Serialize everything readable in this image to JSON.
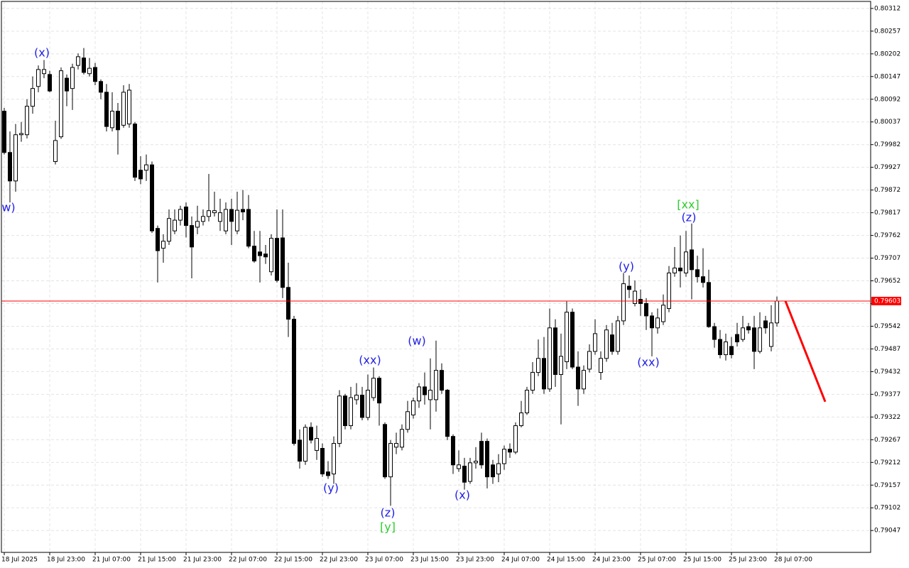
{
  "chart_data": {
    "type": "candlestick",
    "up_color": "#ffffff",
    "down_color": "#000000",
    "wick_color": "#000000",
    "grid": true,
    "open": [
      0.80063,
      0.79963,
      0.79894,
      0.80006,
      0.80006,
      0.80075,
      0.80123,
      0.80154,
      0.80152,
      0.79941,
      0.80001,
      0.80143,
      0.80118,
      0.80174,
      0.80192,
      0.80154,
      0.80169,
      0.80135,
      0.80109,
      0.80023,
      0.80063,
      0.80029,
      0.80032,
      0.80032,
      0.7992,
      0.7992,
      0.79933,
      0.79779,
      0.79731,
      0.79748,
      0.79773,
      0.79799,
      0.79831,
      0.79786,
      0.79782,
      0.79796,
      0.79808,
      0.79817,
      0.79796,
      0.79773,
      0.79825,
      0.79773,
      0.79825,
      0.79825,
      0.79736,
      0.79722,
      0.79717,
      0.79674,
      0.79755,
      0.79756,
      0.79636,
      0.79559,
      0.79266,
      0.79215,
      0.79297,
      0.79241,
      0.79246,
      0.79189,
      0.79184,
      0.79258,
      0.79373,
      0.79301,
      0.79364,
      0.79375,
      0.79321,
      0.79369,
      0.79416,
      0.79304,
      0.79177,
      0.79249,
      0.79249,
      0.79292,
      0.79327,
      0.79361,
      0.79395,
      0.79364,
      0.79364,
      0.79435,
      0.79387,
      0.79275,
      0.79197,
      0.79203,
      0.79166,
      0.79211,
      0.79263,
      0.79263,
      0.79206,
      0.79184,
      0.79209,
      0.79244,
      0.79237,
      0.79301,
      0.79332,
      0.79387,
      0.7943,
      0.79464,
      0.7939,
      0.79538,
      0.79425,
      0.79456,
      0.79576,
      0.79443,
      0.7939,
      0.79438,
      0.79481,
      0.7943,
      0.79464,
      0.79521,
      0.79481,
      0.79555,
      0.79639,
      0.79597,
      0.79607,
      0.79597,
      0.79567,
      0.79538,
      0.79553,
      0.79585,
      0.79671,
      0.79683,
      0.79671,
      0.79727,
      0.79679,
      0.79662,
      0.79648,
      0.79541,
      0.7951,
      0.79473,
      0.79493,
      0.79522,
      0.7951,
      0.79541,
      0.79538,
      0.79481,
      0.79555,
      0.79493,
      0.7955
    ],
    "high": [
      0.80071,
      0.80014,
      0.80032,
      0.80037,
      0.80092,
      0.80147,
      0.80174,
      0.80187,
      0.80161,
      0.8004,
      0.80169,
      0.80152,
      0.80178,
      0.80203,
      0.80216,
      0.80192,
      0.8018,
      0.8014,
      0.80129,
      0.80109,
      0.80083,
      0.80126,
      0.80129,
      0.80037,
      0.79954,
      0.79958,
      0.79941,
      0.79786,
      0.79765,
      0.79825,
      0.79825,
      0.79834,
      0.79842,
      0.79808,
      0.79834,
      0.79825,
      0.79911,
      0.79868,
      0.79851,
      0.79842,
      0.79851,
      0.79868,
      0.79872,
      0.7986,
      0.79773,
      0.79773,
      0.79739,
      0.79765,
      0.79825,
      0.79825,
      0.79696,
      0.79567,
      0.79292,
      0.79304,
      0.79309,
      0.79301,
      0.79258,
      0.79215,
      0.79275,
      0.79387,
      0.79378,
      0.79395,
      0.79404,
      0.79395,
      0.79425,
      0.79442,
      0.79421,
      0.79309,
      0.79266,
      0.79284,
      0.79304,
      0.79361,
      0.79369,
      0.79404,
      0.7943,
      0.79464,
      0.79507,
      0.79452,
      0.7939,
      0.7928,
      0.79241,
      0.79223,
      0.79223,
      0.79249,
      0.79284,
      0.7927,
      0.79218,
      0.79232,
      0.79253,
      0.79258,
      0.79309,
      0.79361,
      0.79395,
      0.79455,
      0.7951,
      0.79516,
      0.79585,
      0.79559,
      0.79524,
      0.79602,
      0.79585,
      0.79481,
      0.79447,
      0.79498,
      0.79559,
      0.79481,
      0.79545,
      0.7955,
      0.79567,
      0.79671,
      0.79665,
      0.79653,
      0.79631,
      0.7961,
      0.79576,
      0.79585,
      0.79619,
      0.79688,
      0.79734,
      0.79762,
      0.79773,
      0.79791,
      0.79713,
      0.79731,
      0.79679,
      0.7955,
      0.79533,
      0.79524,
      0.79516,
      0.7955,
      0.79567,
      0.7955,
      0.79567,
      0.79576,
      0.79567,
      0.79593,
      0.79614
    ],
    "low": [
      0.79958,
      0.79842,
      0.79868,
      0.79989,
      0.79997,
      0.80057,
      0.80109,
      0.80143,
      0.80109,
      0.79934,
      0.79996,
      0.80075,
      0.80066,
      0.80164,
      0.80152,
      0.80147,
      0.80126,
      0.80092,
      0.80014,
      0.80014,
      0.79958,
      0.80023,
      0.80023,
      0.79894,
      0.79886,
      0.79894,
      0.79768,
      0.79648,
      0.79696,
      0.79739,
      0.79765,
      0.79786,
      0.79757,
      0.79658,
      0.79765,
      0.79786,
      0.79796,
      0.79808,
      0.79773,
      0.79765,
      0.79739,
      0.79765,
      0.79799,
      0.79731,
      0.79696,
      0.79648,
      0.79693,
      0.79665,
      0.79648,
      0.7961,
      0.79516,
      0.79253,
      0.79197,
      0.79206,
      0.79258,
      0.79218,
      0.79177,
      0.79172,
      0.7916,
      0.79249,
      0.79292,
      0.79292,
      0.79352,
      0.79314,
      0.79314,
      0.79361,
      0.79301,
      0.79172,
      0.79107,
      0.79232,
      0.79241,
      0.79284,
      0.79318,
      0.79344,
      0.79352,
      0.79292,
      0.79335,
      0.79378,
      0.79266,
      0.79184,
      0.79189,
      0.79146,
      0.7916,
      0.79197,
      0.79197,
      0.79149,
      0.7916,
      0.79164,
      0.79194,
      0.79223,
      0.79232,
      0.79297,
      0.79327,
      0.79378,
      0.79421,
      0.79378,
      0.79383,
      0.79395,
      0.79304,
      0.79438,
      0.79438,
      0.79349,
      0.79378,
      0.7943,
      0.79473,
      0.79412,
      0.79456,
      0.79473,
      0.79473,
      0.79545,
      0.7961,
      0.7959,
      0.79567,
      0.79533,
      0.79469,
      0.79524,
      0.79545,
      0.79576,
      0.79662,
      0.79636,
      0.79662,
      0.79607,
      0.79648,
      0.79636,
      0.79538,
      0.7949,
      0.79464,
      0.79459,
      0.79464,
      0.79493,
      0.79504,
      0.79524,
      0.79438,
      0.79476,
      0.79524,
      0.79481,
      0.79541
    ],
    "close": [
      0.79963,
      0.79894,
      0.80006,
      0.80009,
      0.80075,
      0.80118,
      0.80164,
      0.80164,
      0.80112,
      0.79992,
      0.80161,
      0.80112,
      0.80169,
      0.80195,
      0.80157,
      0.80167,
      0.80135,
      0.80109,
      0.80026,
      0.80063,
      0.80018,
      0.80109,
      0.80114,
      0.79903,
      0.79899,
      0.79933,
      0.79773,
      0.79725,
      0.79748,
      0.79803,
      0.79799,
      0.79825,
      0.79786,
      0.79734,
      0.79796,
      0.79808,
      0.79822,
      0.79822,
      0.79817,
      0.79825,
      0.79796,
      0.79823,
      0.79819,
      0.79736,
      0.797,
      0.79713,
      0.7971,
      0.79755,
      0.79653,
      0.79636,
      0.79559,
      0.79258,
      0.79215,
      0.79297,
      0.79266,
      0.7927,
      0.79184,
      0.7918,
      0.79258,
      0.79373,
      0.79301,
      0.79369,
      0.79375,
      0.79321,
      0.79387,
      0.79416,
      0.79356,
      0.79177,
      0.79258,
      0.79258,
      0.79292,
      0.79335,
      0.79361,
      0.79395,
      0.79376,
      0.79387,
      0.79435,
      0.79387,
      0.79275,
      0.79206,
      0.79206,
      0.79164,
      0.79211,
      0.79215,
      0.79206,
      0.79177,
      0.79177,
      0.79209,
      0.79244,
      0.79237,
      0.79301,
      0.79332,
      0.79387,
      0.7943,
      0.79464,
      0.7939,
      0.79538,
      0.79425,
      0.79469,
      0.79576,
      0.79443,
      0.7939,
      0.79435,
      0.79481,
      0.79524,
      0.79464,
      0.79533,
      0.79481,
      0.79555,
      0.79645,
      0.79631,
      0.79627,
      0.79597,
      0.79567,
      0.79538,
      0.79562,
      0.79593,
      0.79671,
      0.79683,
      0.79676,
      0.79722,
      0.79679,
      0.79662,
      0.79648,
      0.79541,
      0.7951,
      0.79473,
      0.79504,
      0.79473,
      0.79504,
      0.79538,
      0.79533,
      0.79481,
      0.79538,
      0.79538,
      0.7955,
      0.79603
    ],
    "xlim": [
      -0.5,
      152.5
    ],
    "xticks": [
      {
        "value": 0,
        "label": "18 Jul 2025"
      },
      {
        "value": 8,
        "label": "18 Jul 23:00"
      },
      {
        "value": 16,
        "label": "21 Jul 07:00"
      },
      {
        "value": 24,
        "label": "21 Jul 15:00"
      },
      {
        "value": 32,
        "label": "21 Jul 23:00"
      },
      {
        "value": 40,
        "label": "22 Jul 07:00"
      },
      {
        "value": 48,
        "label": "22 Jul 15:00"
      },
      {
        "value": 56,
        "label": "22 Jul 23:00"
      },
      {
        "value": 64,
        "label": "23 Jul 07:00"
      },
      {
        "value": 72,
        "label": "23 Jul 15:00"
      },
      {
        "value": 80,
        "label": "23 Jul 23:00"
      },
      {
        "value": 88,
        "label": "24 Jul 07:00"
      },
      {
        "value": 96,
        "label": "24 Jul 15:00"
      },
      {
        "value": 104,
        "label": "24 Jul 23:00"
      },
      {
        "value": 112,
        "label": "25 Jul 07:00"
      },
      {
        "value": 120,
        "label": "25 Jul 15:00"
      },
      {
        "value": 128,
        "label": "25 Jul 23:00"
      },
      {
        "value": 136,
        "label": "28 Jul 07:00"
      }
    ],
    "ylim": [
      0.78994,
      0.80329
    ],
    "yticks": [
      0.80312,
      0.80257,
      0.80202,
      0.80147,
      0.80092,
      0.80037,
      0.79982,
      0.79927,
      0.79872,
      0.79817,
      0.79762,
      0.79707,
      0.79652,
      0.79597,
      0.79542,
      0.79487,
      0.79432,
      0.79377,
      0.79322,
      0.79267,
      0.79212,
      0.79157,
      0.79102,
      0.79047
    ],
    "price_line": {
      "value": 0.79603,
      "color": "#ff0000"
    },
    "forecast": {
      "x": [
        137.5,
        144.5
      ],
      "values": [
        0.79603,
        0.79359
      ],
      "color": "#ff0000"
    },
    "annotations": [
      {
        "text": "w)",
        "color": "#1e1ee6"
      },
      {
        "text": "(x)",
        "color": "#1e1ee6"
      },
      {
        "text": "(xx)",
        "color": "#1e1ee6"
      },
      {
        "text": "(w)",
        "color": "#1e1ee6"
      },
      {
        "text": "(y)",
        "color": "#1e1ee6"
      },
      {
        "text": "(z)",
        "color": "#1e1ee6"
      },
      {
        "text": "[y]",
        "color": "#2ecc2e"
      },
      {
        "text": "(x)",
        "color": "#1e1ee6"
      },
      {
        "text": "(y)",
        "color": "#1e1ee6"
      },
      {
        "text": "(xx)",
        "color": "#1e1ee6"
      },
      {
        "text": "[xx]",
        "color": "#2ecc2e"
      },
      {
        "text": "(z)",
        "color": "#1e1ee6"
      }
    ]
  }
}
